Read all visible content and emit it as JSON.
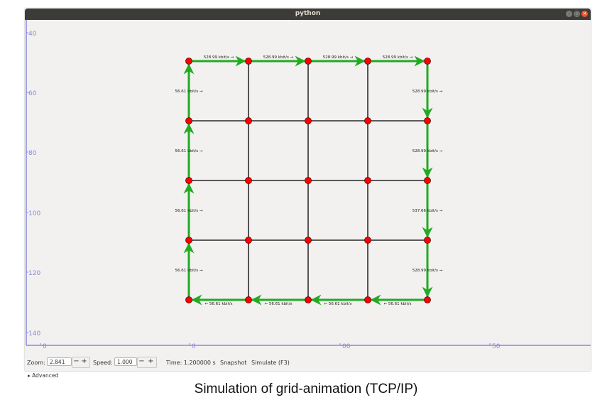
{
  "window": {
    "title": "python"
  },
  "axis": {
    "y_ticks": [
      "40",
      "60",
      "80",
      "100",
      "120",
      "140"
    ],
    "x_ticks": [
      "0",
      "0",
      "00",
      "50"
    ]
  },
  "grid": {
    "rows": 5,
    "cols": 5,
    "node_color": "#ff0000",
    "link_color": "#000000",
    "flow_color": "#22aa22",
    "top_labels": [
      "528.99 kbit/s →",
      "528.99 kbit/s →",
      "528.99 kbit/s →",
      "528.99 kbit/s →"
    ],
    "bottom_labels": [
      "← 56.61 kbit/s",
      "← 56.61 kbit/s",
      "← 56.61 kbit/s",
      "← 56.61 kbit/s"
    ],
    "left_labels": [
      "56.61 kbit/s →",
      "56.61 kbit/s →",
      "56.61 kbit/s →",
      "56.61 kbit/s →"
    ],
    "right_labels": [
      "528.99 kbit/s →",
      "528.99 kbit/s →",
      "537.66 kbit/s →",
      "528.99 kbit/s →"
    ]
  },
  "controls": {
    "zoom_label": "Zoom:",
    "zoom_value": "2.841",
    "speed_label": "Speed:",
    "speed_value": "1.000",
    "minus": "−",
    "plus": "+",
    "time": "Time: 1.200000 s",
    "snapshot": "Snapshot",
    "simulate": "Simulate (F3)",
    "advanced_arrow": "▸",
    "advanced": "Advanced"
  },
  "caption": "Simulation of grid-animation (TCP/IP)"
}
